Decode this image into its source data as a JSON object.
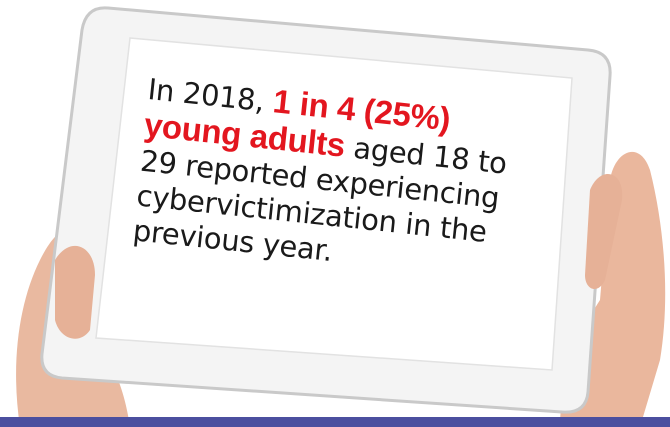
{
  "message": {
    "intro": "In 2018,",
    "highlight": "1 in 4 (25%) young adults",
    "rest": "aged 18 to 29 reported experiencing cybervictimization in the previous year."
  }
}
